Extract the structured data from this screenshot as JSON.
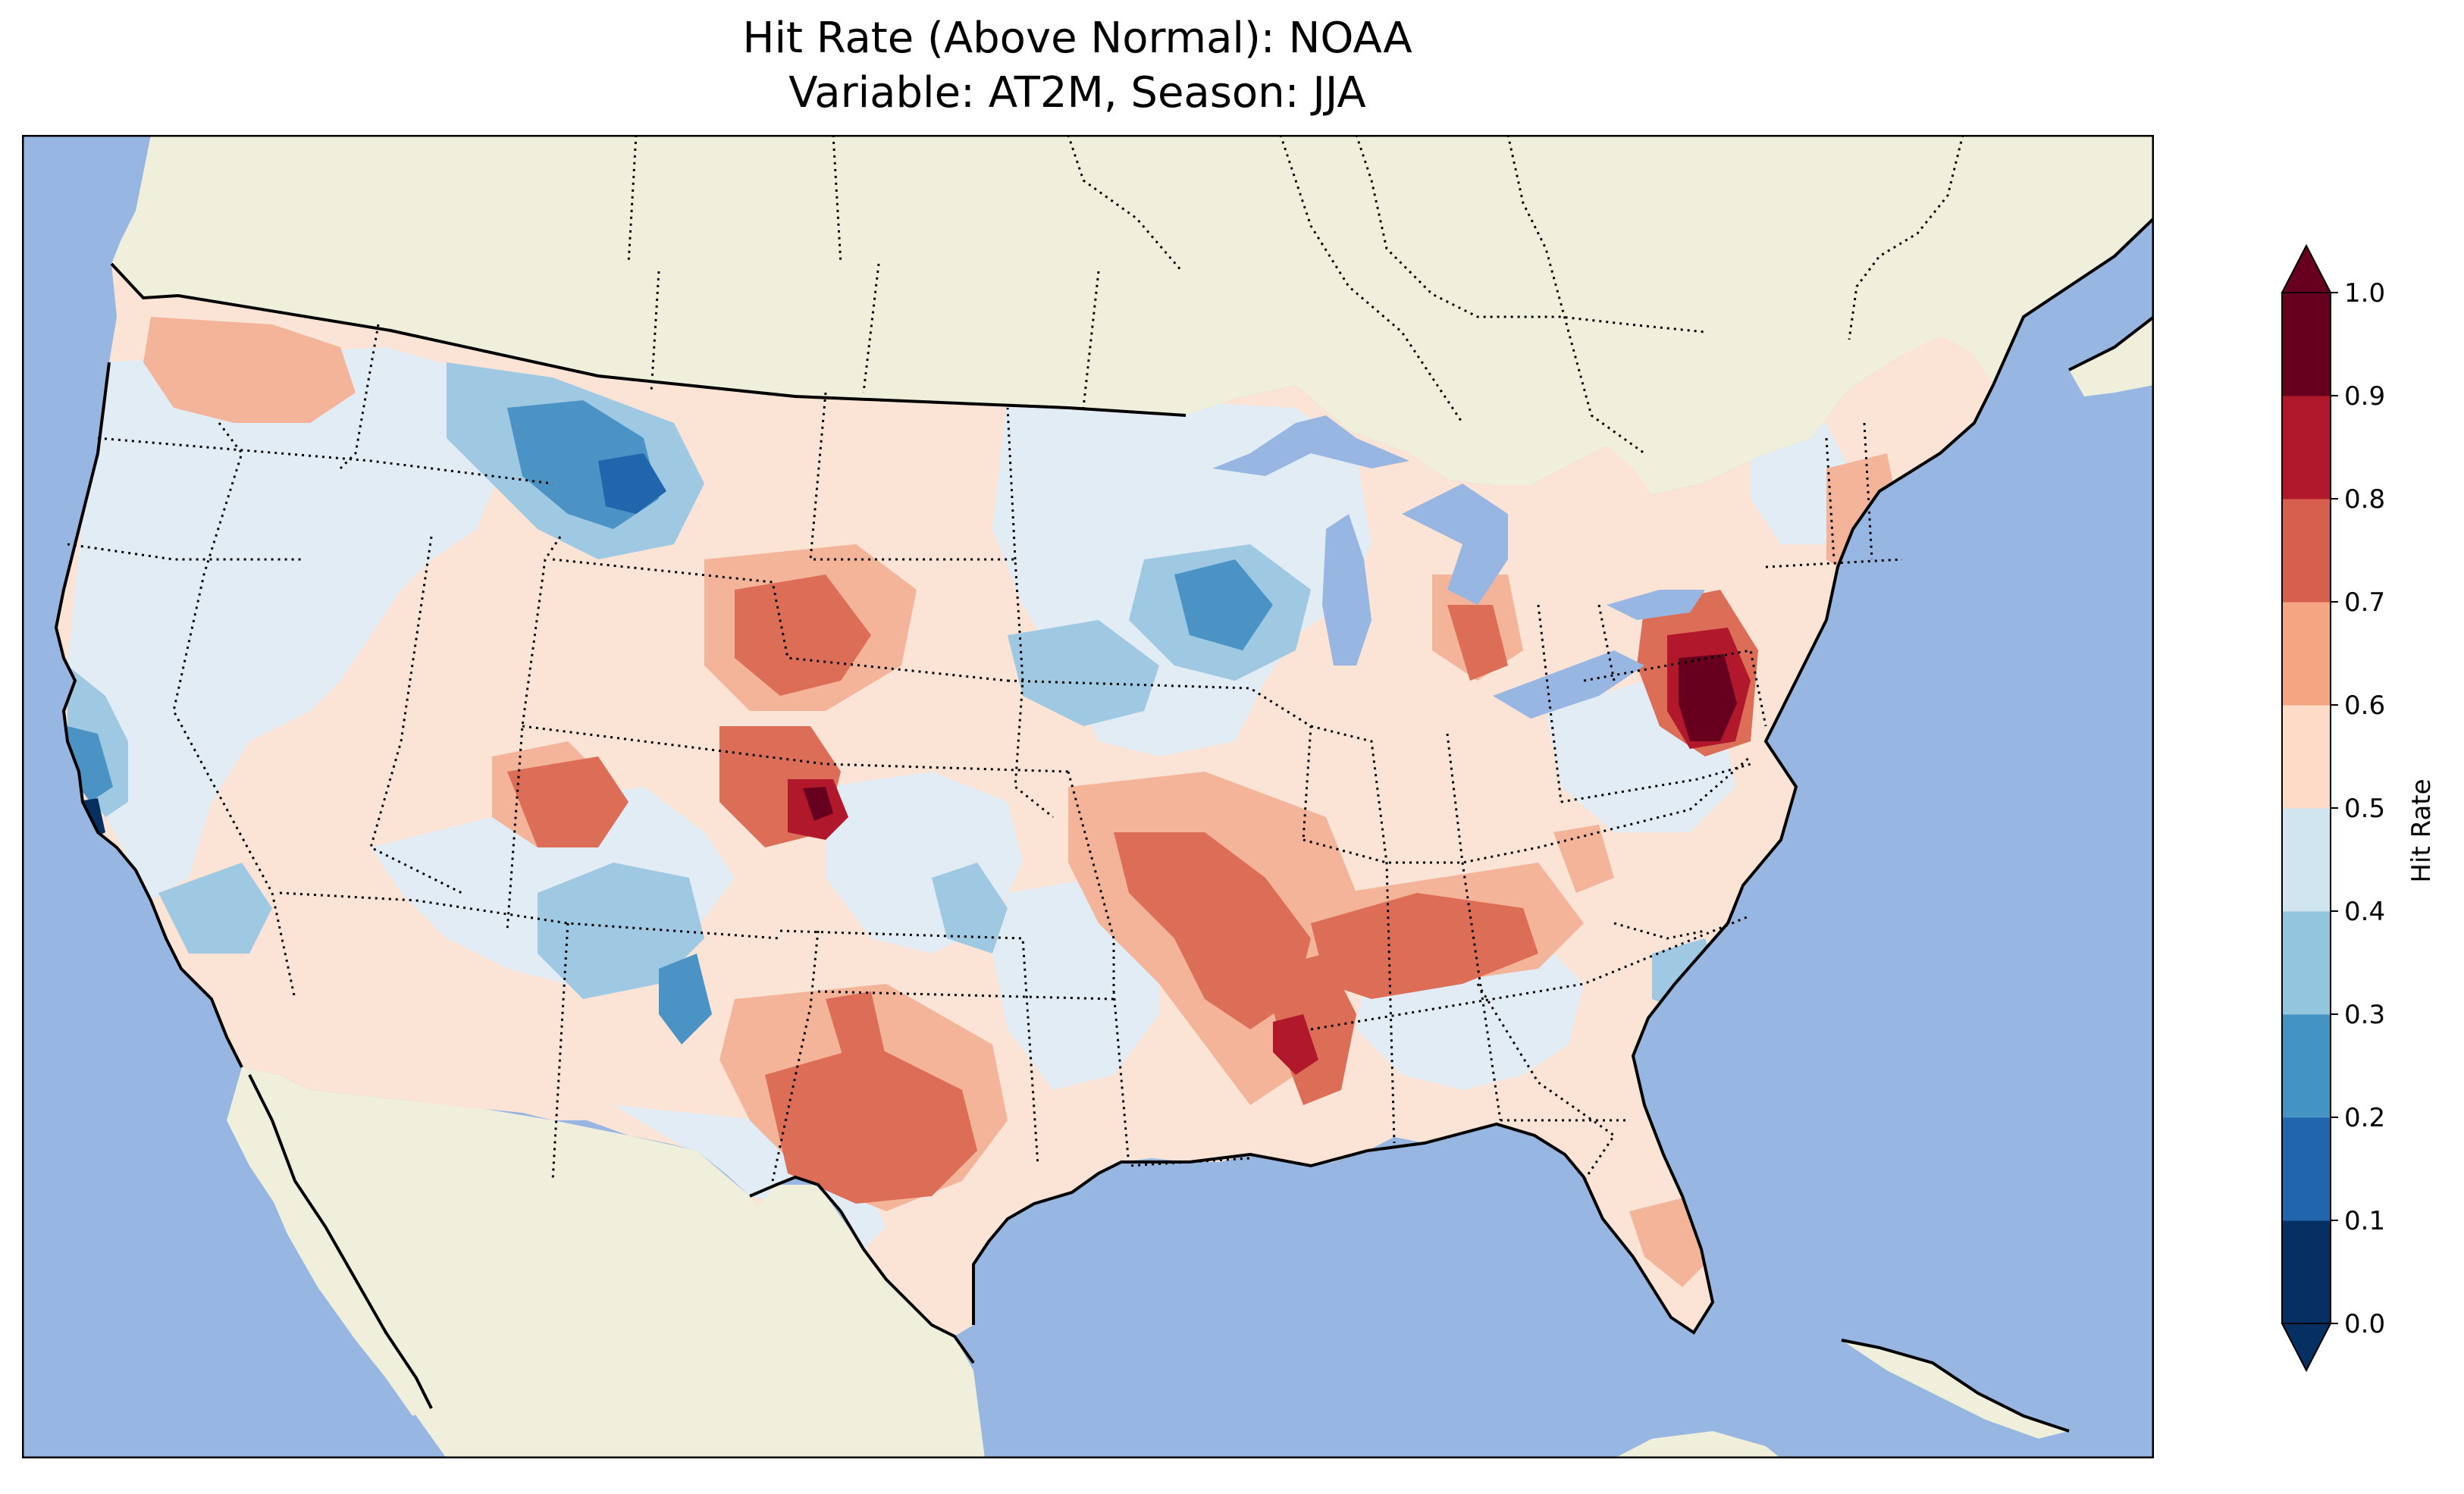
{
  "title": {
    "line1": "Hit Rate (Above Normal): NOAA",
    "line2": "Variable: AT2M, Season: JJA"
  },
  "map": {
    "region": "Contiguous United States",
    "ocean_color": "#97b6e1",
    "land_color": "#efefdb"
  },
  "colorbar": {
    "label": "Hit Rate",
    "ticks": [
      "0.0",
      "0.1",
      "0.2",
      "0.3",
      "0.4",
      "0.5",
      "0.6",
      "0.7",
      "0.8",
      "0.9",
      "1.0"
    ],
    "colors": [
      "#053061",
      "#2166ac",
      "#4393c3",
      "#92c5de",
      "#d1e5f0",
      "#fddbc7",
      "#f4a582",
      "#d6604d",
      "#b2182b",
      "#67001f"
    ],
    "extend": "both"
  },
  "chart_data": {
    "type": "heatmap",
    "title": "Hit Rate (Above Normal): NOAA",
    "subtitle": "Variable: AT2M, Season: JJA",
    "colorbar_label": "Hit Rate",
    "value_range": [
      0.0,
      1.0
    ],
    "hotspots": [
      {
        "area": "Central Pennsylvania",
        "value": 0.95
      },
      {
        "area": "North-central Colorado",
        "value": 0.9
      },
      {
        "area": "Western Tennessee / Missouri Bootheel",
        "value": 0.85
      },
      {
        "area": "Texas (central)",
        "value": 0.75
      },
      {
        "area": "Arkansas–Tennessee belt",
        "value": 0.75
      },
      {
        "area": "Utah–Colorado",
        "value": 0.75
      },
      {
        "area": "Montana (north-central)",
        "value": 0.15
      },
      {
        "area": "Central California coast",
        "value": 0.05
      },
      {
        "area": "Minnesota–Iowa",
        "value": 0.25
      },
      {
        "area": "New Mexico",
        "value": 0.25
      }
    ]
  }
}
